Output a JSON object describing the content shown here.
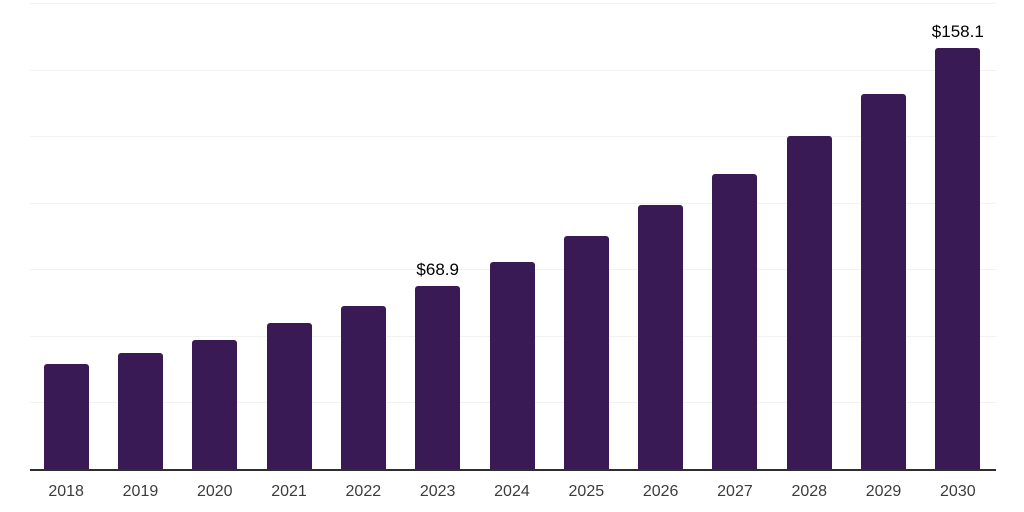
{
  "chart_data": {
    "type": "bar",
    "title": "",
    "xlabel": "",
    "ylabel": "",
    "categories": [
      "2018",
      "2019",
      "2020",
      "2021",
      "2022",
      "2023",
      "2024",
      "2025",
      "2026",
      "2027",
      "2028",
      "2029",
      "2030"
    ],
    "values": [
      39.4,
      43.6,
      48.4,
      54.7,
      61.2,
      68.9,
      77.6,
      87.4,
      99.0,
      110.8,
      125.0,
      140.7,
      158.1
    ],
    "data_labels": {
      "2023": "$68.9",
      "2030": "$158.1"
    },
    "currency_prefix": "$",
    "ylim": [
      0,
      175
    ],
    "gridline_interval": 25,
    "grid": true,
    "legend": false,
    "y_axis_labels_visible": false
  },
  "colors": {
    "background": "#ffffff",
    "bar": "#3a1a55",
    "gridline": "#f2f2f2",
    "axis_line": "#2e2e2e",
    "value_label": "#000000",
    "tick_label": "#3c3c3c"
  }
}
